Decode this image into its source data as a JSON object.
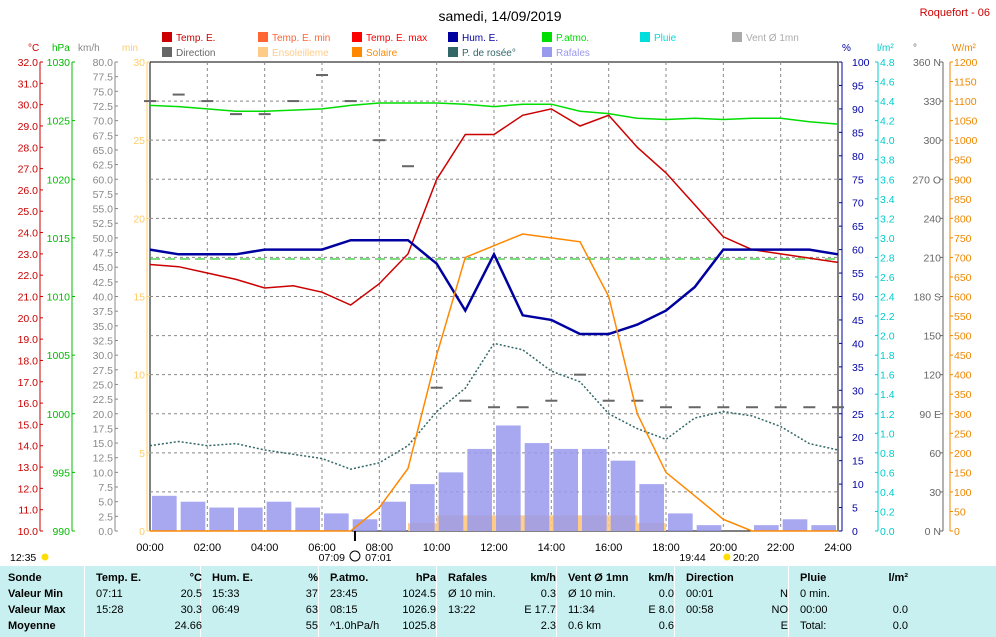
{
  "header": {
    "title": "samedi, 14/09/2019",
    "station": "Roquefort - 06"
  },
  "legend": [
    {
      "label": "Temp. E.",
      "color": "#cc0000"
    },
    {
      "label": "Temp. E. min",
      "color": "#ff6633"
    },
    {
      "label": "Temp. E. max",
      "color": "#ff0000"
    },
    {
      "label": "Hum. E.",
      "color": "#0000a0"
    },
    {
      "label": "P.atmo.",
      "color": "#00dd00"
    },
    {
      "label": "Pluie",
      "color": "#00dddd"
    },
    {
      "label": "Vent Ø 1mn",
      "color": "#aaaaaa"
    },
    {
      "label": "Direction",
      "color": "#666666"
    },
    {
      "label": "Ensoleilleme",
      "color": "#ffcc88"
    },
    {
      "label": "Solaire",
      "color": "#ff8800"
    },
    {
      "label": "P. de rosée°",
      "color": "#336666"
    },
    {
      "label": "Rafales",
      "color": "#9999ee"
    }
  ],
  "axes": {
    "temp": {
      "unit": "°C",
      "ticks": [
        "32.0",
        "31.0",
        "30.0",
        "29.0",
        "28.0",
        "27.0",
        "26.0",
        "25.0",
        "24.0",
        "23.0",
        "22.0",
        "21.0",
        "20.0",
        "19.0",
        "18.0",
        "17.0",
        "16.0",
        "15.0",
        "14.0",
        "13.0",
        "12.0",
        "11.0",
        "10.0"
      ],
      "color": "#cc0000"
    },
    "press": {
      "unit": "hPa",
      "ticks": [
        "1030",
        "1025",
        "1020",
        "1015",
        "1010",
        "1005",
        "1000",
        "995",
        "990"
      ],
      "color": "#00bb00"
    },
    "wind": {
      "unit": "km/h",
      "ticks": [
        "80.0",
        "77.5",
        "75.0",
        "72.5",
        "70.0",
        "67.5",
        "65.0",
        "62.5",
        "60.0",
        "57.5",
        "55.0",
        "52.5",
        "50.0",
        "47.5",
        "45.0",
        "42.5",
        "40.0",
        "37.5",
        "35.0",
        "32.5",
        "30.0",
        "27.5",
        "25.0",
        "22.5",
        "20.0",
        "17.5",
        "15.0",
        "12.5",
        "10.0",
        "7.5",
        "5.0",
        "2.5",
        "0.0"
      ],
      "color": "#888888"
    },
    "sun": {
      "unit": "min",
      "ticks": [
        "30",
        "25",
        "20",
        "15",
        "10",
        "5",
        "0"
      ],
      "color": "#ffcc66"
    },
    "hum": {
      "unit": "%",
      "ticks": [
        "100",
        "95",
        "90",
        "85",
        "80",
        "75",
        "70",
        "65",
        "60",
        "55",
        "50",
        "45",
        "40",
        "35",
        "30",
        "25",
        "20",
        "15",
        "10",
        "5",
        "0"
      ],
      "color": "#0000a0"
    },
    "rain": {
      "unit": "l/m²",
      "ticks": [
        "4.8",
        "4.6",
        "4.4",
        "4.2",
        "4.0",
        "3.8",
        "3.6",
        "3.4",
        "3.2",
        "3.0",
        "2.8",
        "2.6",
        "2.4",
        "2.2",
        "2.0",
        "1.8",
        "1.6",
        "1.4",
        "1.2",
        "1.0",
        "0.8",
        "0.6",
        "0.4",
        "0.2",
        "0.0"
      ],
      "color": "#00cccc"
    },
    "dir": {
      "unit": "°",
      "ticks": [
        "360 N",
        "330",
        "300",
        "270 O",
        "240",
        "210",
        "180 S",
        "150",
        "120",
        "90 E",
        "60",
        "30",
        "0 N"
      ],
      "color": "#666666"
    },
    "rad": {
      "unit": "W/m²",
      "ticks": [
        "1200",
        "1150",
        "1100",
        "1050",
        "1000",
        "950",
        "900",
        "850",
        "800",
        "750",
        "700",
        "650",
        "600",
        "550",
        "500",
        "450",
        "400",
        "350",
        "300",
        "250",
        "200",
        "150",
        "100",
        "50",
        "0"
      ],
      "color": "#ee8800"
    },
    "time": [
      "00:00",
      "02:00",
      "04:00",
      "06:00",
      "08:00",
      "10:00",
      "12:00",
      "14:00",
      "16:00",
      "18:00",
      "20:00",
      "22:00",
      "24:00"
    ]
  },
  "events": {
    "moonrise": "12:35",
    "sunrise": "07:09",
    "sun_mark": "07:01",
    "sunset": "19:44",
    "moonset": "20:20"
  },
  "chart_data": {
    "type": "line",
    "xlabel": "",
    "x": [
      0,
      1,
      2,
      3,
      4,
      5,
      6,
      7,
      8,
      9,
      10,
      11,
      12,
      13,
      14,
      15,
      16,
      17,
      18,
      19,
      20,
      21,
      22,
      23,
      24
    ],
    "xlim": [
      0,
      24
    ],
    "series": [
      {
        "name": "Temp. E.",
        "axis": "temp",
        "color": "#cc0000",
        "values": [
          22.5,
          22.4,
          22.1,
          21.8,
          21.4,
          21.5,
          21.2,
          20.6,
          21.6,
          23.0,
          26.5,
          28.6,
          28.6,
          29.5,
          29.8,
          29.0,
          29.5,
          28.0,
          26.8,
          25.3,
          23.8,
          23.2,
          23.0,
          22.8,
          22.6
        ]
      },
      {
        "name": "Hum. E.",
        "axis": "hum",
        "color": "#0000a0",
        "values": [
          60,
          59,
          59,
          59,
          60,
          60,
          60,
          62,
          62,
          62,
          57,
          47,
          59,
          46,
          45,
          42,
          42,
          44,
          47,
          52,
          60,
          60,
          60,
          60,
          59
        ]
      },
      {
        "name": "P.atmo.",
        "axis": "press",
        "color": "#00dd00",
        "values": [
          1026.3,
          1026.2,
          1026.0,
          1025.8,
          1025.8,
          1025.9,
          1026.0,
          1026.3,
          1026.5,
          1026.5,
          1026.5,
          1026.4,
          1026.2,
          1026.4,
          1026.4,
          1025.8,
          1025.6,
          1025.2,
          1025.1,
          1025.2,
          1025.1,
          1025.2,
          1025.2,
          1024.9,
          1024.7
        ]
      },
      {
        "name": "P. de rosée°",
        "axis": "temp",
        "color": "#336666",
        "values": [
          14.0,
          14.2,
          14.0,
          14.1,
          13.8,
          13.6,
          13.4,
          12.9,
          13.2,
          14.0,
          15.6,
          16.7,
          18.8,
          18.5,
          17.5,
          17.0,
          15.5,
          14.8,
          14.3,
          15.3,
          15.6,
          15.4,
          14.9,
          14.1,
          13.8
        ]
      },
      {
        "name": "Solaire",
        "axis": "rad",
        "color": "#ff8800",
        "values": [
          0,
          0,
          0,
          0,
          0,
          0,
          0,
          0,
          60,
          160,
          450,
          700,
          730,
          760,
          750,
          740,
          600,
          300,
          150,
          90,
          30,
          0,
          0,
          0,
          0
        ]
      }
    ],
    "gusts": {
      "name": "Rafales",
      "axis": "wind",
      "color": "#9999ee",
      "values": [
        6,
        5,
        4,
        4,
        5,
        4,
        3,
        2,
        5,
        8,
        10,
        14,
        18,
        15,
        14,
        14,
        12,
        8,
        3,
        1,
        0,
        1,
        2,
        1,
        2
      ]
    },
    "sunshine": {
      "name": "Ensoleilleme",
      "axis": "sun",
      "color": "#ffcc88",
      "values": [
        0,
        0,
        0,
        0,
        0,
        0,
        0,
        0,
        0,
        0.5,
        1,
        1,
        1,
        1,
        1,
        1,
        1,
        0.5,
        0,
        0,
        0,
        0,
        0,
        0,
        0
      ]
    },
    "direction": {
      "name": "Direction",
      "axis": "dir",
      "color": "#666666",
      "values": [
        330,
        335,
        330,
        320,
        320,
        330,
        350,
        330,
        300,
        280,
        110,
        100,
        95,
        95,
        100,
        120,
        100,
        100,
        95,
        95,
        95,
        95,
        95,
        95,
        95
      ]
    },
    "hum_reference": {
      "axis": "hum",
      "value": 58,
      "color": "#00bb00"
    }
  },
  "table": {
    "columns": [
      {
        "head": "Sonde",
        "unit": ""
      },
      {
        "head": "Temp. E.",
        "unit": "°C"
      },
      {
        "head": "Hum. E.",
        "unit": "%"
      },
      {
        "head": "P.atmo.",
        "unit": "hPa"
      },
      {
        "head": "Rafales",
        "unit": "km/h"
      },
      {
        "head": "Vent Ø 1mn",
        "unit": "km/h"
      },
      {
        "head": "Direction",
        "unit": ""
      },
      {
        "head": "Pluie",
        "unit": "l/m²"
      }
    ],
    "rows": [
      {
        "label": "Valeur Min",
        "cells": [
          [
            "07:11",
            "20.5"
          ],
          [
            "15:33",
            "37"
          ],
          [
            "23:45",
            "1024.5"
          ],
          [
            "Ø 10 min.",
            "0.3"
          ],
          [
            "Ø 10 min.",
            "0.0"
          ],
          [
            "00:01",
            "N"
          ],
          [
            "0 min.",
            ""
          ]
        ]
      },
      {
        "label": "Valeur Max",
        "cells": [
          [
            "15:28",
            "30.3"
          ],
          [
            "06:49",
            "63"
          ],
          [
            "08:15",
            "1026.9"
          ],
          [
            "13:22",
            "E 17.7"
          ],
          [
            "11:34",
            "E 8.0"
          ],
          [
            "00:58",
            "NO"
          ],
          [
            "00:00",
            "0.0"
          ]
        ]
      },
      {
        "label": "Moyenne",
        "cells": [
          [
            "",
            "24.66"
          ],
          [
            "",
            "55"
          ],
          [
            "^1.0hPa/h",
            "1025.8"
          ],
          [
            "",
            "2.3"
          ],
          [
            "0.6 km",
            "0.6"
          ],
          [
            "",
            "E"
          ],
          [
            "Total:",
            "0.0"
          ]
        ]
      }
    ]
  }
}
